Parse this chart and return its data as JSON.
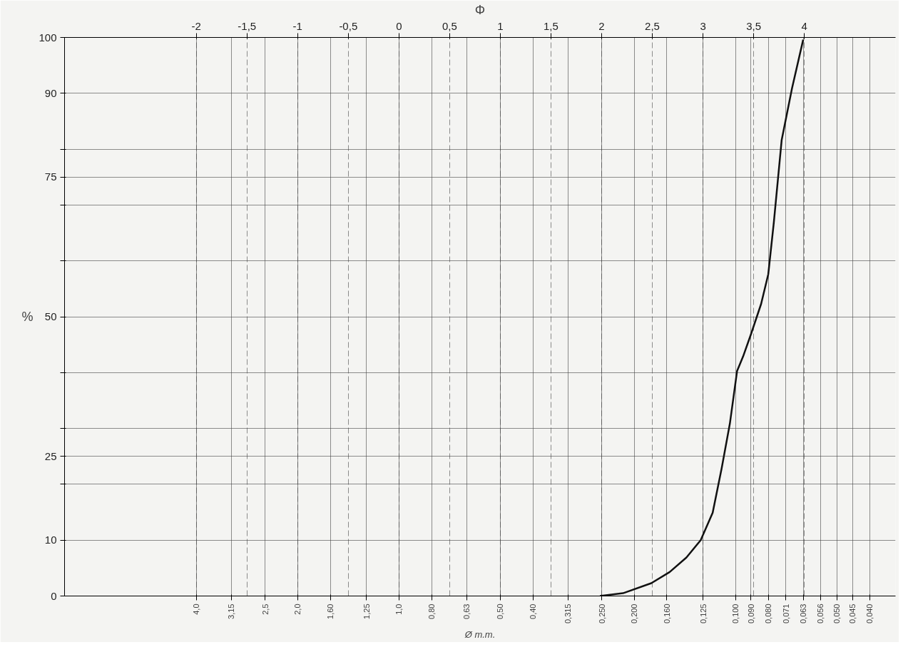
{
  "chart_data": {
    "type": "line",
    "xlabel": "Ø m.m.",
    "ylabel": "%",
    "x2label": "Φ",
    "x": [
      0.253,
      0.216,
      0.178,
      0.157,
      0.14,
      0.127,
      0.117,
      0.11,
      0.104,
      0.099,
      0.095,
      0.09,
      0.084,
      0.08,
      0.077,
      0.073,
      0.068,
      0.063
    ],
    "series": [
      {
        "color": "#111111",
        "values": [
          0,
          0.5,
          2.3,
          4.3,
          6.9,
          10,
          14.9,
          22.9,
          30.9,
          40.3,
          42.9,
          46.9,
          52.3,
          57.6,
          66.9,
          81.6,
          90.9,
          99.6
        ]
      }
    ],
    "xlim": [
      9.85,
      0.0335
    ],
    "log": "x",
    "ylim": [
      0,
      100
    ],
    "yticks": [
      0,
      10,
      {
        "value": 20,
        "label": null
      },
      25,
      {
        "value": 30,
        "label": null
      },
      {
        "value": 40,
        "label": null
      },
      50,
      {
        "value": 60,
        "label": null
      },
      {
        "value": 70,
        "label": null
      },
      75,
      {
        "value": 80,
        "label": null
      },
      90,
      100
    ],
    "xticks": [
      {
        "value": 4.0,
        "label": "4,0"
      },
      {
        "value": 3.15,
        "label": "3,15"
      },
      {
        "value": 2.5,
        "label": "2,5"
      },
      {
        "value": 2.0,
        "label": "2,0"
      },
      {
        "value": 1.6,
        "label": "1,60"
      },
      {
        "value": 1.25,
        "label": "1,25"
      },
      {
        "value": 1.0,
        "label": "1,0"
      },
      {
        "value": 0.8,
        "label": "0,80"
      },
      {
        "value": 0.63,
        "label": "0,63"
      },
      {
        "value": 0.5,
        "label": "0,50"
      },
      {
        "value": 0.4,
        "label": "0,40"
      },
      {
        "value": 0.315,
        "label": "0,315"
      },
      {
        "value": 0.25,
        "label": "0,250"
      },
      {
        "value": 0.2,
        "label": "0,200"
      },
      {
        "value": 0.16,
        "label": "0,160"
      },
      {
        "value": 0.125,
        "label": "0,125"
      },
      {
        "value": 0.1,
        "label": "0,100"
      },
      {
        "value": 0.09,
        "label": "0,090"
      },
      {
        "value": 0.08,
        "label": "0,080"
      },
      {
        "value": 0.071,
        "label": "0,071"
      },
      {
        "value": 0.063,
        "label": "0,063"
      },
      {
        "value": 0.056,
        "label": "0,056"
      },
      {
        "value": 0.05,
        "label": "0,050"
      },
      {
        "value": 0.045,
        "label": "0,045"
      },
      {
        "value": 0.04,
        "label": "0,040"
      }
    ],
    "x2lim": [
      -3.3,
      4.9
    ],
    "x2ticks": [
      {
        "value": -2,
        "label": "-2"
      },
      {
        "value": -1.5,
        "label": "-1,5"
      },
      {
        "value": -1,
        "label": "-1"
      },
      {
        "value": -0.5,
        "label": "-0,5"
      },
      0,
      {
        "value": 0.5,
        "label": "0,5"
      },
      1,
      {
        "value": 1.5,
        "label": "1,5"
      },
      2,
      {
        "value": 2.5,
        "label": "2,5"
      },
      3,
      {
        "value": 3.5,
        "label": "3,5"
      },
      4
    ],
    "grid": true,
    "marker": "none",
    "line_style": "solid"
  }
}
